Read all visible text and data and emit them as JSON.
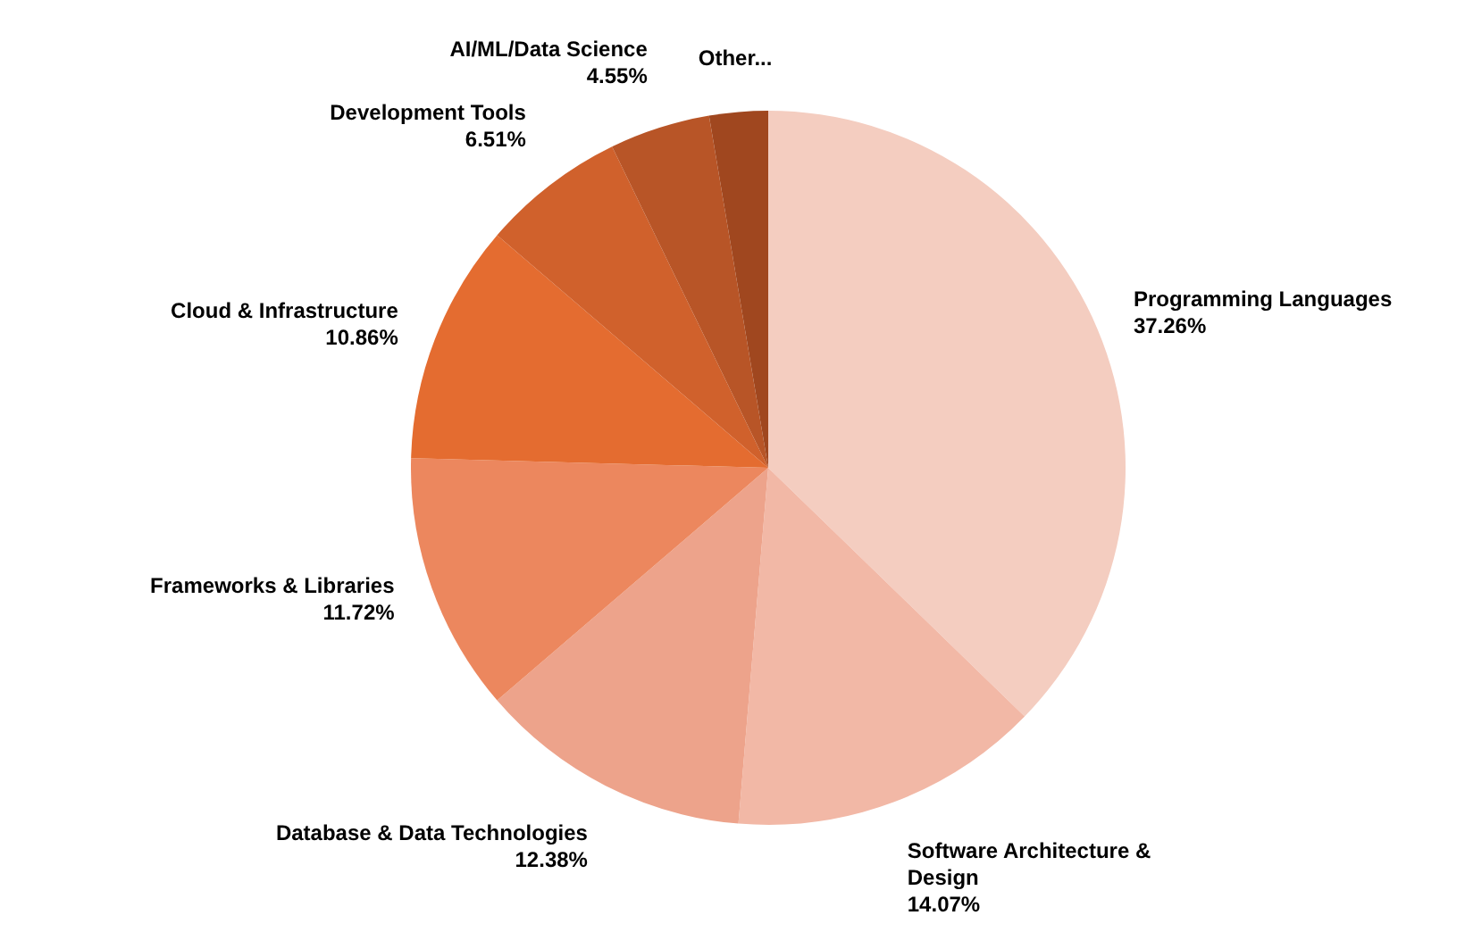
{
  "chart_data": {
    "type": "pie",
    "categories": [
      "Programming Languages",
      "Software Architecture & Design",
      "Database & Data Technologies",
      "Frameworks & Libraries",
      "Cloud & Infrastructure",
      "Development Tools",
      "AI/ML/Data Science",
      "Other..."
    ],
    "values": [
      37.26,
      14.07,
      12.38,
      11.72,
      10.86,
      6.51,
      4.55,
      2.65
    ],
    "value_labels": [
      "37.26%",
      "14.07%",
      "12.38%",
      "11.72%",
      "10.86%",
      "6.51%",
      "4.55%",
      null
    ],
    "colors": [
      "#f4cdc0",
      "#f2b8a6",
      "#eda38b",
      "#ec875e",
      "#e46c30",
      "#d0612c",
      "#b85527",
      "#a0471f"
    ],
    "legend": false
  }
}
